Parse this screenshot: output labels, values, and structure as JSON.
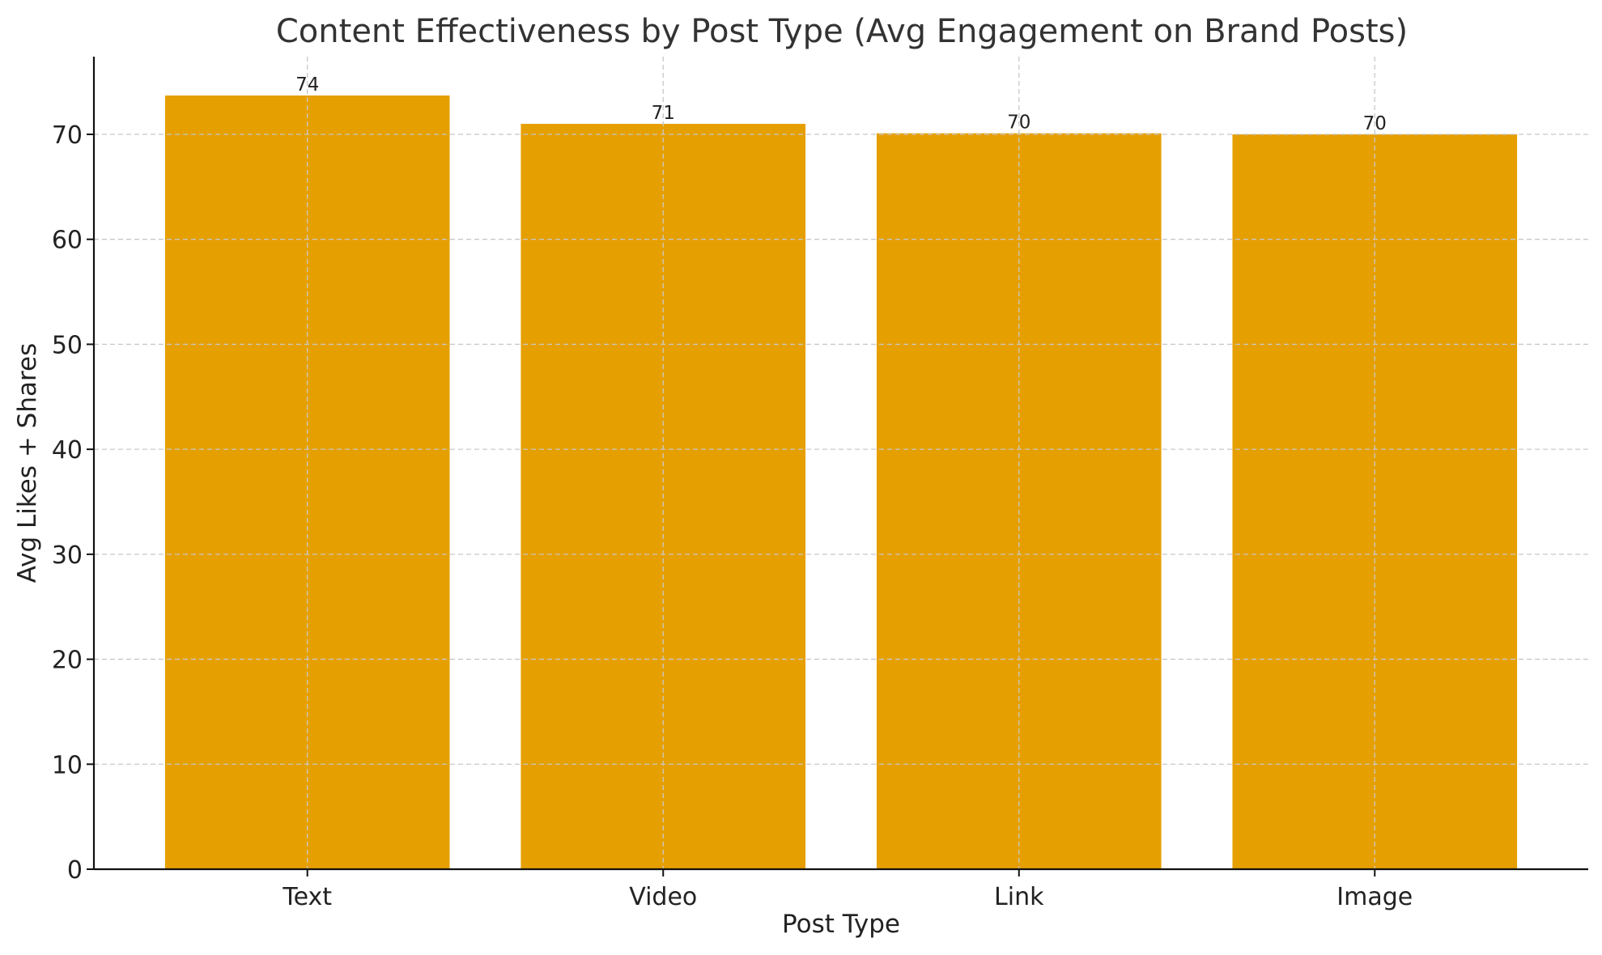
{
  "chart_data": {
    "type": "bar",
    "title": "Content Effectiveness by Post Type (Avg Engagement on Brand Posts)",
    "xlabel": "Post Type",
    "ylabel": "Avg Likes + Shares",
    "categories": [
      "Text",
      "Video",
      "Link",
      "Image"
    ],
    "values": [
      73.7,
      71.0,
      70.1,
      70.0
    ],
    "value_labels": [
      "74",
      "71",
      "70",
      "70"
    ],
    "ylim": [
      0,
      77.4
    ],
    "yticks": [
      0,
      10,
      20,
      30,
      40,
      50,
      60,
      70
    ],
    "grid": true,
    "bar_color": "#E69F00"
  }
}
